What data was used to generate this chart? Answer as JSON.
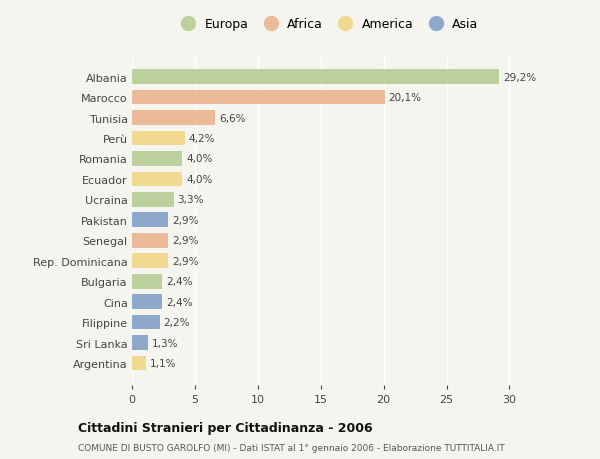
{
  "countries": [
    "Albania",
    "Marocco",
    "Tunisia",
    "Perù",
    "Romania",
    "Ecuador",
    "Ucraina",
    "Pakistan",
    "Senegal",
    "Rep. Dominicana",
    "Bulgaria",
    "Cina",
    "Filippine",
    "Sri Lanka",
    "Argentina"
  ],
  "values": [
    29.2,
    20.1,
    6.6,
    4.2,
    4.0,
    4.0,
    3.3,
    2.9,
    2.9,
    2.9,
    2.4,
    2.4,
    2.2,
    1.3,
    1.1
  ],
  "labels": [
    "29,2%",
    "20,1%",
    "6,6%",
    "4,2%",
    "4,0%",
    "4,0%",
    "3,3%",
    "2,9%",
    "2,9%",
    "2,9%",
    "2,4%",
    "2,4%",
    "2,2%",
    "1,3%",
    "1,1%"
  ],
  "continents": [
    "Europa",
    "Africa",
    "Africa",
    "America",
    "Europa",
    "America",
    "Europa",
    "Asia",
    "Africa",
    "America",
    "Europa",
    "Asia",
    "Asia",
    "Asia",
    "America"
  ],
  "colors": {
    "Europa": "#a8c47e",
    "Africa": "#e8a87c",
    "America": "#f0d070",
    "Asia": "#6a8fbf"
  },
  "xlim": [
    0,
    31
  ],
  "xticks": [
    0,
    5,
    10,
    15,
    20,
    25,
    30
  ],
  "title": "Cittadini Stranieri per Cittadinanza - 2006",
  "subtitle": "COMUNE DI BUSTO GAROLFO (MI) - Dati ISTAT al 1° gennaio 2006 - Elaborazione TUTTITALIA.IT",
  "background_color": "#f5f5f0",
  "bar_alpha": 0.75,
  "legend_order": [
    "Europa",
    "Africa",
    "America",
    "Asia"
  ]
}
